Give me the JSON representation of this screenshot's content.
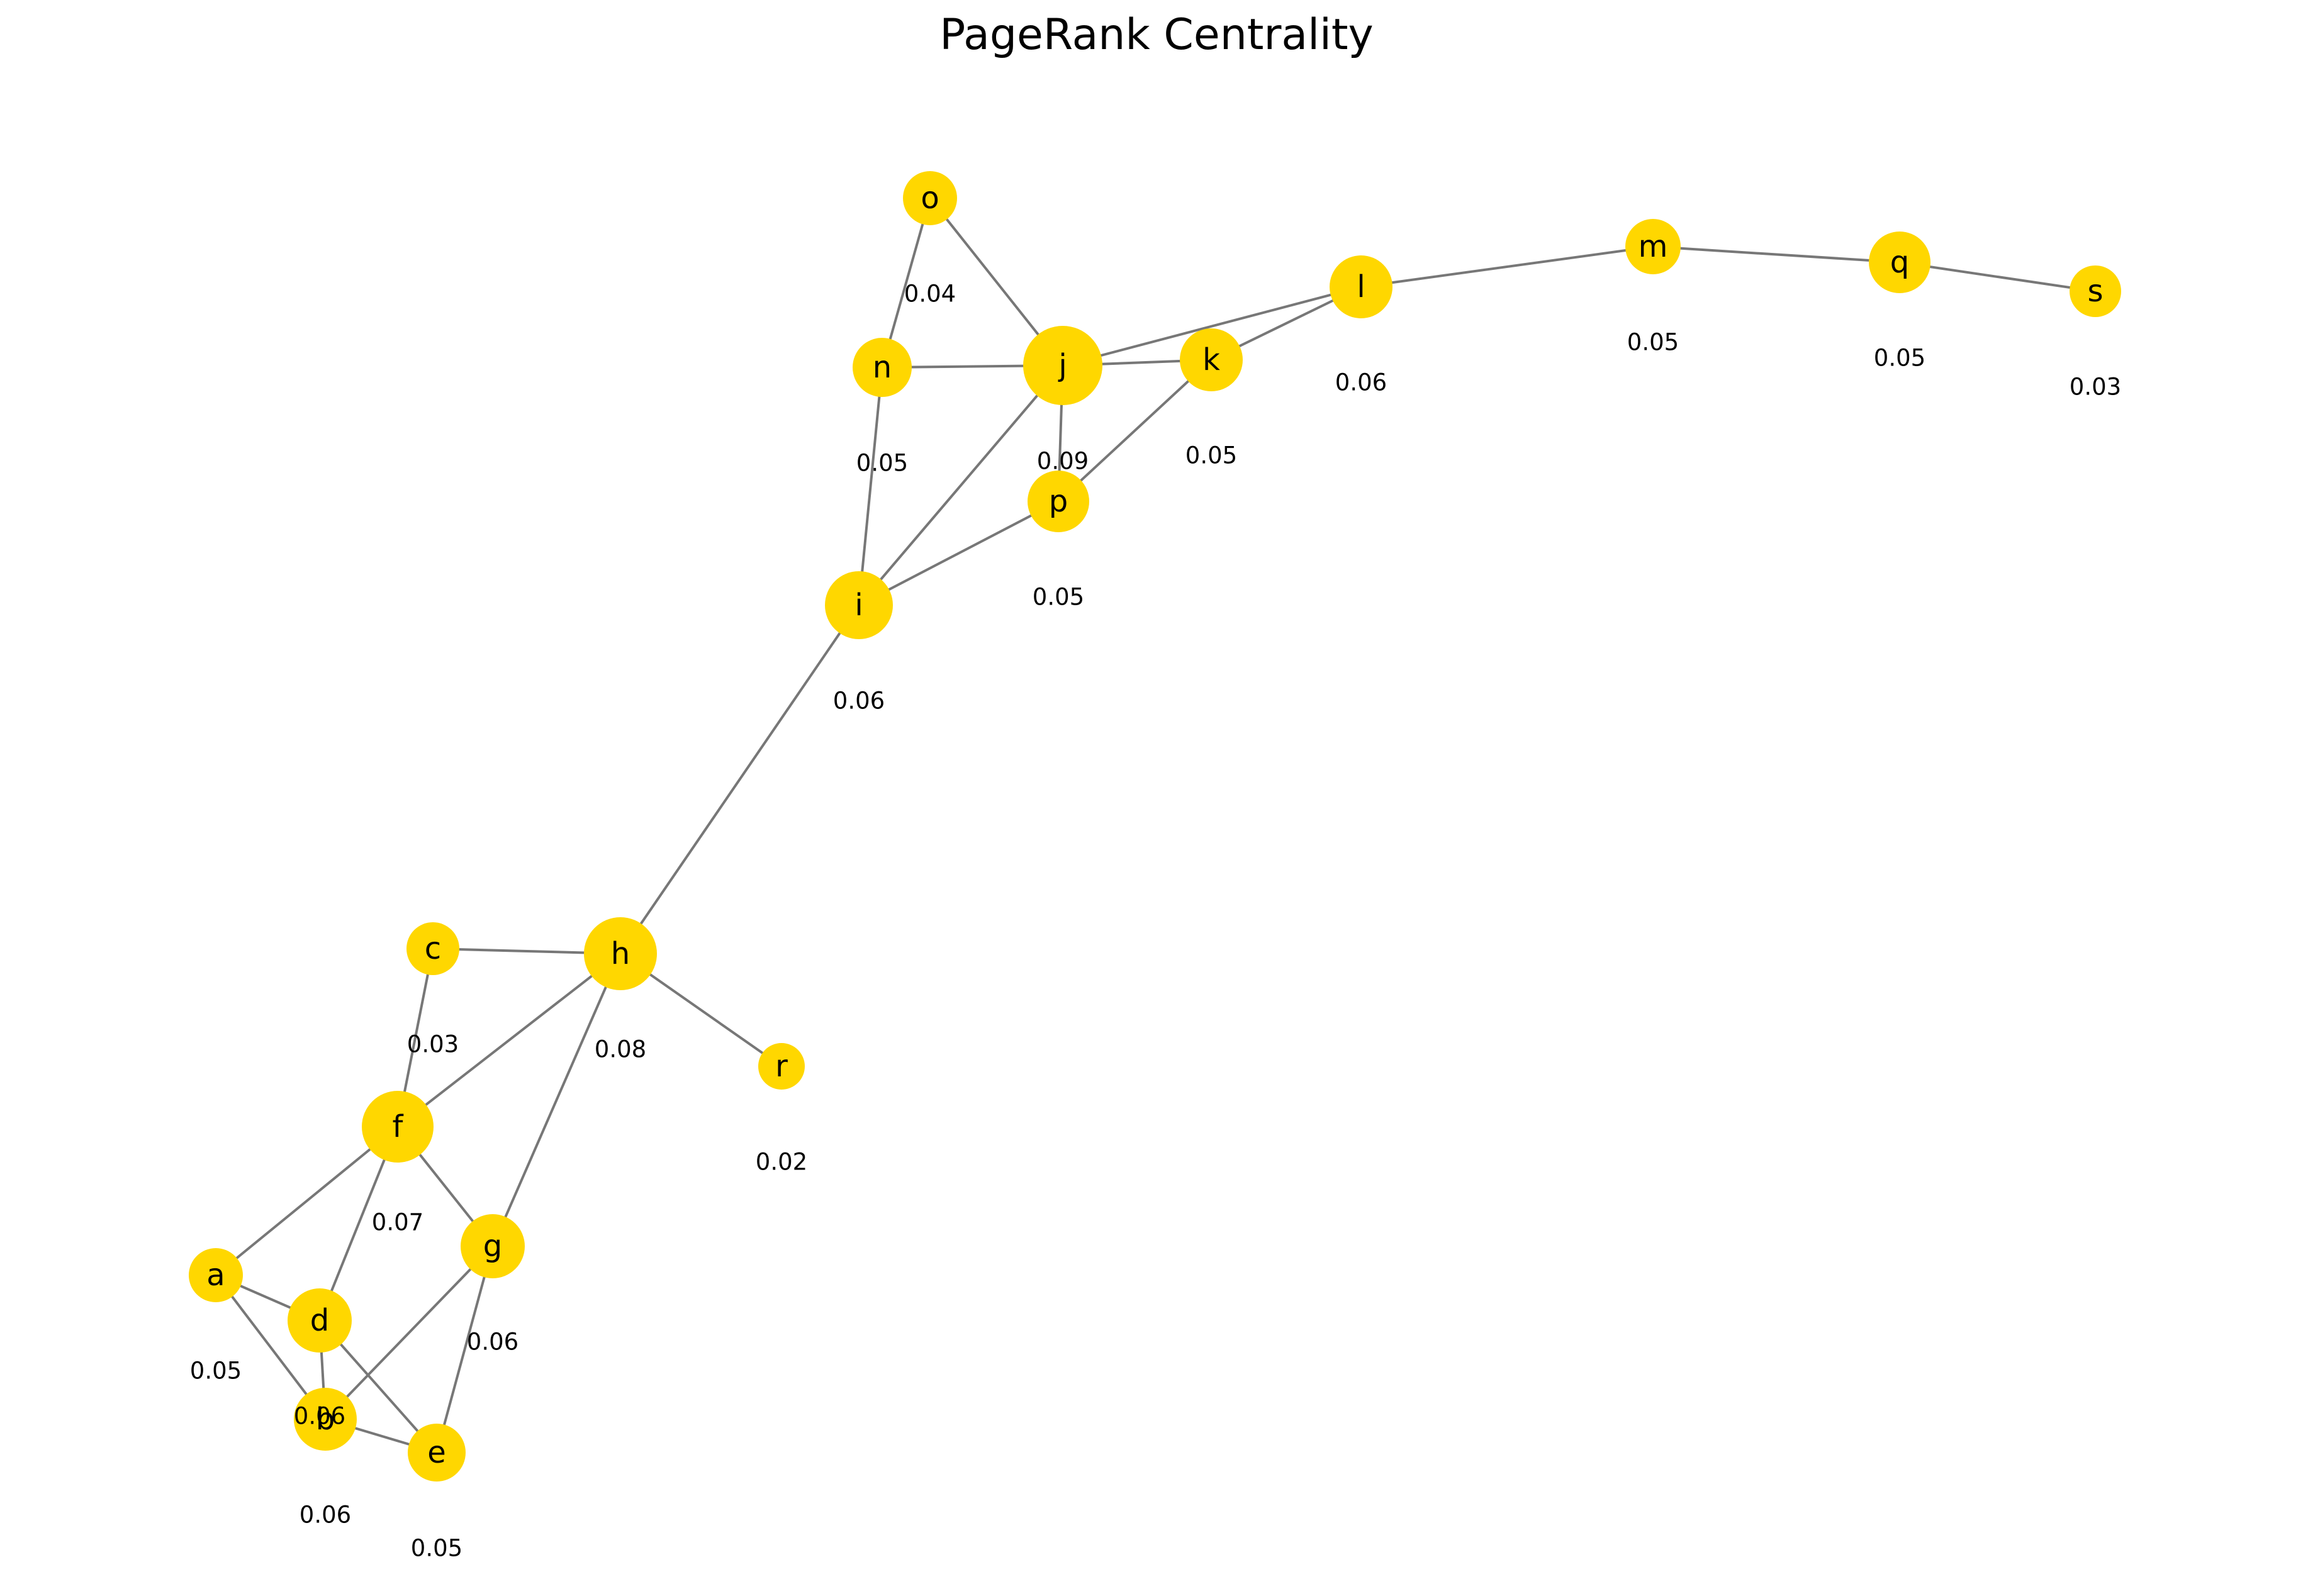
{
  "title": "PageRank Centrality",
  "colors": {
    "node": "#FFD700",
    "edge": "#777777",
    "text": "#000000"
  },
  "nodes": [
    {
      "id": "a",
      "label": "a",
      "score_label": "0.05"
    },
    {
      "id": "b",
      "label": "b",
      "score_label": "0.06"
    },
    {
      "id": "c",
      "label": "c",
      "score_label": "0.03"
    },
    {
      "id": "d",
      "label": "d",
      "score_label": "0.06"
    },
    {
      "id": "e",
      "label": "e",
      "score_label": "0.05"
    },
    {
      "id": "f",
      "label": "f",
      "score_label": "0.07"
    },
    {
      "id": "g",
      "label": "g",
      "score_label": "0.06"
    },
    {
      "id": "h",
      "label": "h",
      "score_label": "0.08"
    },
    {
      "id": "i",
      "label": "i",
      "score_label": "0.06"
    },
    {
      "id": "j",
      "label": "j",
      "score_label": "0.09"
    },
    {
      "id": "k",
      "label": "k",
      "score_label": "0.05"
    },
    {
      "id": "l",
      "label": "l",
      "score_label": "0.06"
    },
    {
      "id": "m",
      "label": "m",
      "score_label": "0.05"
    },
    {
      "id": "n",
      "label": "n",
      "score_label": "0.05"
    },
    {
      "id": "o",
      "label": "o",
      "score_label": "0.04"
    },
    {
      "id": "p",
      "label": "p",
      "score_label": "0.05"
    },
    {
      "id": "q",
      "label": "q",
      "score_label": "0.05"
    },
    {
      "id": "r",
      "label": "r",
      "score_label": "0.02"
    },
    {
      "id": "s",
      "label": "s",
      "score_label": "0.03"
    }
  ],
  "edges": [
    [
      "a",
      "f"
    ],
    [
      "a",
      "d"
    ],
    [
      "a",
      "b"
    ],
    [
      "b",
      "d"
    ],
    [
      "b",
      "e"
    ],
    [
      "b",
      "g"
    ],
    [
      "c",
      "h"
    ],
    [
      "c",
      "f"
    ],
    [
      "d",
      "f"
    ],
    [
      "d",
      "e"
    ],
    [
      "e",
      "g"
    ],
    [
      "f",
      "h"
    ],
    [
      "f",
      "g"
    ],
    [
      "g",
      "h"
    ],
    [
      "h",
      "i"
    ],
    [
      "h",
      "r"
    ],
    [
      "i",
      "j"
    ],
    [
      "i",
      "n"
    ],
    [
      "i",
      "p"
    ],
    [
      "j",
      "o"
    ],
    [
      "j",
      "n"
    ],
    [
      "j",
      "k"
    ],
    [
      "j",
      "l"
    ],
    [
      "j",
      "p"
    ],
    [
      "k",
      "p"
    ],
    [
      "k",
      "l"
    ],
    [
      "l",
      "m"
    ],
    [
      "m",
      "q"
    ],
    [
      "n",
      "o"
    ],
    [
      "q",
      "s"
    ]
  ]
}
